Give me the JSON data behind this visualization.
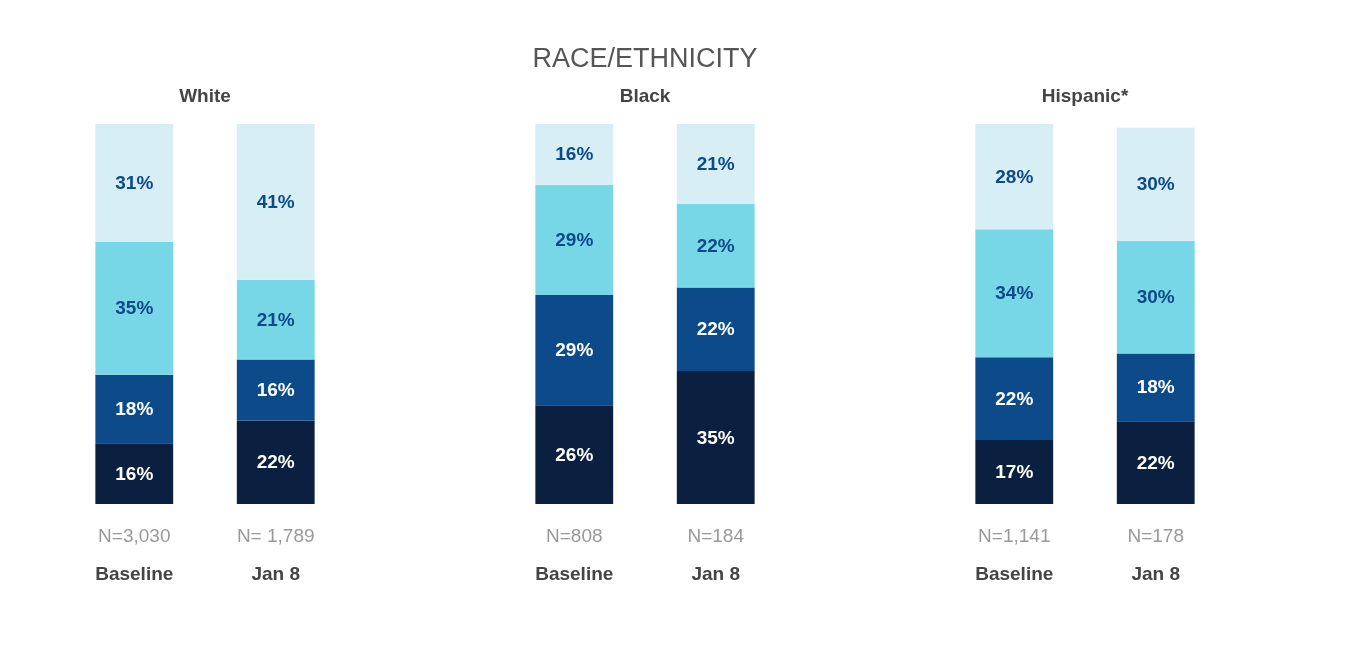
{
  "chart_data": [
    {
      "type": "bar",
      "title": "White",
      "stacked": true,
      "categories": [
        "Baseline",
        "Jan 8"
      ],
      "annotations": [
        "N=3,030",
        "N= 1,789"
      ],
      "series": [
        {
          "color": "#0b1f40",
          "values": [
            16,
            22
          ],
          "value_labels": [
            "16%",
            "22%"
          ]
        },
        {
          "color": "#0c4a8a",
          "values": [
            18,
            16
          ],
          "value_labels": [
            "18%",
            "16%"
          ]
        },
        {
          "color": "#78d7e6",
          "values": [
            35,
            21
          ],
          "value_labels": [
            "35%",
            "21%"
          ]
        },
        {
          "color": "#d6eef4",
          "values": [
            31,
            41
          ],
          "value_labels": [
            "31%",
            "41%"
          ]
        }
      ]
    },
    {
      "type": "bar",
      "title": "Black",
      "subtitle": "RACE/ETHNICITY",
      "stacked": true,
      "categories": [
        "Baseline",
        "Jan 8"
      ],
      "annotations": [
        "N=808",
        "N=184"
      ],
      "series": [
        {
          "color": "#0b1f40",
          "values": [
            26,
            35
          ],
          "value_labels": [
            "26%",
            "35%"
          ]
        },
        {
          "color": "#0c4a8a",
          "values": [
            29,
            22
          ],
          "value_labels": [
            "29%",
            "22%"
          ]
        },
        {
          "color": "#78d7e6",
          "values": [
            29,
            22
          ],
          "value_labels": [
            "29%",
            "22%"
          ]
        },
        {
          "color": "#d6eef4",
          "values": [
            16,
            21
          ],
          "value_labels": [
            "16%",
            "21%"
          ]
        }
      ]
    },
    {
      "type": "bar",
      "title": "Hispanic*",
      "stacked": true,
      "categories": [
        "Baseline",
        "Jan 8"
      ],
      "annotations": [
        "N=1,141",
        "N=178"
      ],
      "series": [
        {
          "color": "#0b1f40",
          "values": [
            17,
            22
          ],
          "value_labels": [
            "17%",
            "22%"
          ]
        },
        {
          "color": "#0c4a8a",
          "values": [
            22,
            18
          ],
          "value_labels": [
            "22%",
            "18%"
          ]
        },
        {
          "color": "#78d7e6",
          "values": [
            34,
            30
          ],
          "value_labels": [
            "34%",
            "30%"
          ]
        },
        {
          "color": "#d6eef4",
          "values": [
            28,
            30
          ],
          "value_labels": [
            "28%",
            "30%"
          ]
        }
      ]
    }
  ]
}
